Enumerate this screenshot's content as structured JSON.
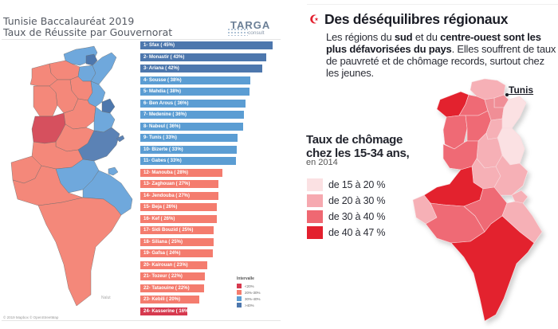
{
  "left_panel": {
    "title_line1": "Tunisie Baccalauréat 2019",
    "title_line2": "Taux de Réussite par Gouvernorat",
    "logo": {
      "main": "TARGA",
      "sub": "consult"
    },
    "map_credit": "© 2019 Mapbox © OpenStreetMap",
    "map_place_label": "Nalut",
    "map_regions": [
      {
        "name": "Bizerte",
        "value": "33%"
      },
      {
        "name": "Ariana",
        "value": "42%"
      },
      {
        "name": "Beja",
        "value": "26%"
      },
      {
        "name": "Jendouba",
        "value": "27%"
      },
      {
        "name": "Ben Arous",
        "value": "36%"
      },
      {
        "name": "Nabeul",
        "value": "36%"
      },
      {
        "name": "Zaghouan",
        "value": "27%"
      },
      {
        "name": "Kef",
        "value": "26%"
      },
      {
        "name": "Siliana",
        "value": "25%"
      },
      {
        "name": "Sousse",
        "value": "38%"
      },
      {
        "name": "Kairouan",
        "value": "23%"
      },
      {
        "name": "Monastir",
        "value": "43%"
      },
      {
        "name": "Kasserine",
        "value": "16%"
      },
      {
        "name": "Mahdia",
        "value": "38%"
      },
      {
        "name": "Sidi Bouzid",
        "value": "25%"
      },
      {
        "name": "Sfax",
        "value": "45%"
      },
      {
        "name": "Gafsa",
        "value": "24%"
      },
      {
        "name": "Tozeur",
        "value": "22%"
      },
      {
        "name": "Gabes",
        "value": "33%"
      },
      {
        "name": "Kebili",
        "value": "20%"
      },
      {
        "name": "Medenine",
        "value": "36%"
      },
      {
        "name": "Tataouine",
        "value": "22%"
      }
    ]
  },
  "chart_data": [
    {
      "type": "bar",
      "orientation": "horizontal",
      "title": "Tunisie Baccalauréat 2019 — Taux de Réussite par Gouvernorat",
      "xlabel": "",
      "ylabel": "",
      "categories": [
        "1- Sfax ( 45%)",
        "2- Monastir ( 43%)",
        "3- Ariana ( 42%)",
        "4- Sousse ( 38%)",
        "5- Mahdia ( 38%)",
        "6- Ben Arous ( 36%)",
        "7- Medenine ( 36%)",
        "8- Nabeul ( 36%)",
        "9- Tunis ( 33%)",
        "10- Bizerte ( 33%)",
        "11- Gabes ( 33%)",
        "12- Manouba ( 28%)",
        "13- Zaghouan ( 27%)",
        "14- Jendouba ( 27%)",
        "15- Beja ( 26%)",
        "16- Kef ( 26%)",
        "17- Sidi Bouzid ( 25%)",
        "18- Siliana ( 25%)",
        "19- Gafsa ( 24%)",
        "20- Kairouan ( 23%)",
        "21- Tozeur ( 22%)",
        "22- Tataouine ( 22%)",
        "23- Kebili ( 20%)",
        "24- Kasserine ( 16%)"
      ],
      "values": [
        45.4,
        43.3,
        41.9,
        37.9,
        37.6,
        36.2,
        35.7,
        35.4,
        33.4,
        33.2,
        32.8,
        28.1,
        26.8,
        26.7,
        26.4,
        26.2,
        25.3,
        25.2,
        24.8,
        23.1,
        22.3,
        21.9,
        20.3,
        16.2
      ],
      "xlim": [
        0,
        46
      ],
      "legend": {
        "title": "Intervalle",
        "position": "bottom-right",
        "entries": [
          {
            "label": "<20%",
            "color": "#d6394e"
          },
          {
            "label": "20%-30%",
            "color": "#f47c6e"
          },
          {
            "label": "30%-40%",
            "color": "#5b9dd3"
          },
          {
            "label": ">40%",
            "color": "#4d77ad"
          }
        ]
      }
    },
    {
      "type": "heatmap",
      "subtype": "choropleth",
      "title": "Taux de chômage chez les 15-34 ans, en 2014",
      "legend": {
        "position": "left",
        "entries": [
          {
            "label": "de 15 à 20 %",
            "color": "#fbe1e3"
          },
          {
            "label": "de 20 à 30 %",
            "color": "#f6a9b0"
          },
          {
            "label": "de 30 à 40 %",
            "color": "#ef6872"
          },
          {
            "label": "de 40 à 47 %",
            "color": "#e3202e"
          }
        ]
      },
      "annotations": [
        "Tunis"
      ]
    }
  ],
  "right_panel": {
    "headline": "Des déséquilibres régionaux",
    "body": {
      "p1": "Les régions du ",
      "b1": "sud",
      "p2": " et du ",
      "b2": "centre-ouest sont les plus défavorisées du pays",
      "p3": ". Elles souffrent de taux de pauvreté et de chômage records, surtout chez les jeunes."
    },
    "legend_title_line1": "Taux de chômage",
    "legend_title_line2": "chez les 15-34 ans,",
    "legend_subtitle": "en 2014",
    "city_label": "Tunis"
  }
}
